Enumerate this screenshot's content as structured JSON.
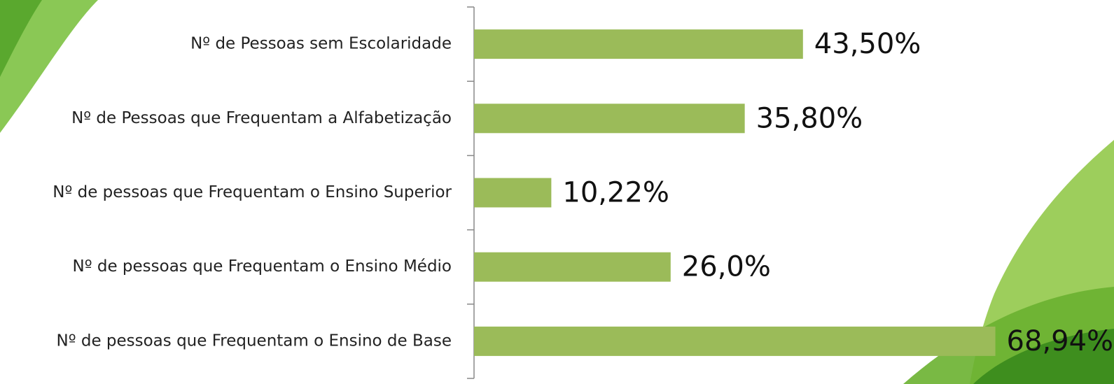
{
  "chart_data": {
    "type": "hbar",
    "categories": [
      "Nº de Pessoas sem Escolaridade",
      "Nº de Pessoas que Frequentam a Alfabetização",
      "Nº de pessoas que Frequentam o Ensino Superior",
      "Nº de pessoas  que Frequentam o Ensino Médio",
      "Nº de pessoas que Frequentam o Ensino de Base"
    ],
    "values": [
      43.5,
      35.8,
      10.22,
      26.0,
      68.94
    ],
    "value_labels": [
      "43,50%",
      "35,80%",
      "10,22%",
      "26,0%",
      "68,94%"
    ],
    "color": "#9bbb59"
  }
}
